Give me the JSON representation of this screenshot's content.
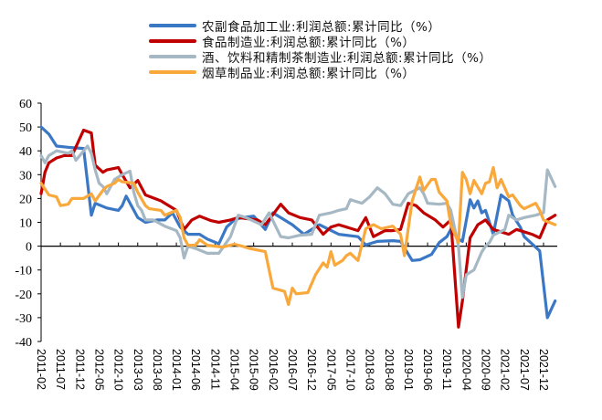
{
  "chart_data": {
    "type": "line",
    "title": "",
    "xlabel": "",
    "ylabel": "",
    "ylim": [
      -40,
      60
    ],
    "yticks": [
      "60",
      "50",
      "40",
      "30",
      "20",
      "10",
      "0",
      "-10",
      "-20",
      "-30",
      "-40"
    ],
    "xticks": [
      "2011-02",
      "2011-07",
      "2011-12",
      "2012-05",
      "2012-10",
      "2013-03",
      "2013-08",
      "2014-01",
      "2014-06",
      "2014-11",
      "2015-04",
      "2015-09",
      "2016-02",
      "2016-07",
      "2016-12",
      "2017-05",
      "2017-10",
      "2018-03",
      "2018-08",
      "2019-01",
      "2019-06",
      "2019-11",
      "2020-04",
      "2020-09",
      "2021-02",
      "2021-07",
      "2021-12"
    ],
    "grid": false,
    "legend_position": "top",
    "series": [
      {
        "name": "农副食品加工业:利润总额:累计同比（%）",
        "color": "#3A78C6",
        "points": [
          [
            "2011-02",
            50
          ],
          [
            "2011-04",
            47
          ],
          [
            "2011-06",
            42
          ],
          [
            "2011-09",
            41.5
          ],
          [
            "2012-01",
            41
          ],
          [
            "2012-03",
            13
          ],
          [
            "2012-04",
            18
          ],
          [
            "2012-07",
            16
          ],
          [
            "2012-10",
            15
          ],
          [
            "2012-11",
            17
          ],
          [
            "2012-12",
            21
          ],
          [
            "2013-03",
            12
          ],
          [
            "2013-05",
            10
          ],
          [
            "2013-08",
            11
          ],
          [
            "2013-10",
            11
          ],
          [
            "2013-12",
            14
          ],
          [
            "2014-02",
            8
          ],
          [
            "2014-04",
            5
          ],
          [
            "2014-07",
            5
          ],
          [
            "2014-09",
            3
          ],
          [
            "2014-12",
            1
          ],
          [
            "2015-02",
            8
          ],
          [
            "2015-04",
            11
          ],
          [
            "2015-06",
            12
          ],
          [
            "2015-09",
            12.6
          ],
          [
            "2015-12",
            7
          ],
          [
            "2016-02",
            14
          ],
          [
            "2016-07",
            9
          ],
          [
            "2016-10",
            5
          ],
          [
            "2017-02",
            9
          ],
          [
            "2017-07",
            5
          ],
          [
            "2017-12",
            4
          ],
          [
            "2018-02",
            0.5
          ],
          [
            "2018-05",
            2
          ],
          [
            "2018-09",
            2.3
          ],
          [
            "2018-11",
            2
          ],
          [
            "2019-02",
            -6
          ],
          [
            "2019-04",
            -5.7
          ],
          [
            "2019-07",
            -3.5
          ],
          [
            "2019-09",
            1.5
          ],
          [
            "2019-11",
            4
          ],
          [
            "2019-12",
            7
          ],
          [
            "2020-02",
            3
          ],
          [
            "2020-03",
            2
          ],
          [
            "2020-05",
            19.5
          ],
          [
            "2020-06",
            16
          ],
          [
            "2020-07",
            19
          ],
          [
            "2020-08",
            14
          ],
          [
            "2020-09",
            15
          ],
          [
            "2020-11",
            5
          ],
          [
            "2021-01",
            21.5
          ],
          [
            "2021-03",
            19
          ],
          [
            "2021-04",
            13
          ],
          [
            "2021-06",
            8
          ],
          [
            "2021-07",
            4
          ],
          [
            "2021-11",
            -2
          ],
          [
            "2022-01",
            -30
          ],
          [
            "2022-03",
            -23
          ]
        ]
      },
      {
        "name": "食品制造业:利润总额:累计同比（%）",
        "color": "#C00000",
        "points": [
          [
            "2011-02",
            22
          ],
          [
            "2011-03",
            31
          ],
          [
            "2011-04",
            35
          ],
          [
            "2011-06",
            37
          ],
          [
            "2011-08",
            38
          ],
          [
            "2011-10",
            38
          ],
          [
            "2012-01",
            48.7
          ],
          [
            "2012-03",
            47.5
          ],
          [
            "2012-04",
            34
          ],
          [
            "2012-06",
            31
          ],
          [
            "2012-07",
            32
          ],
          [
            "2012-10",
            33
          ],
          [
            "2012-11",
            30
          ],
          [
            "2013-01",
            24.5
          ],
          [
            "2013-03",
            27.6
          ],
          [
            "2013-05",
            21.5
          ],
          [
            "2013-09",
            19
          ],
          [
            "2014-01",
            15
          ],
          [
            "2014-03",
            7
          ],
          [
            "2014-05",
            11
          ],
          [
            "2014-07",
            12.6
          ],
          [
            "2014-10",
            10.7
          ],
          [
            "2014-12",
            10
          ],
          [
            "2015-03",
            11
          ],
          [
            "2015-05",
            12
          ],
          [
            "2015-10",
            11
          ],
          [
            "2015-12",
            9
          ],
          [
            "2016-04",
            17.6
          ],
          [
            "2016-06",
            14
          ],
          [
            "2016-09",
            12
          ],
          [
            "2016-12",
            11
          ],
          [
            "2017-02",
            7
          ],
          [
            "2017-03",
            5
          ],
          [
            "2017-05",
            8
          ],
          [
            "2017-07",
            9
          ],
          [
            "2017-09",
            8
          ],
          [
            "2017-12",
            6.5
          ],
          [
            "2018-02",
            12
          ],
          [
            "2018-04",
            4
          ],
          [
            "2018-07",
            6.5
          ],
          [
            "2018-09",
            6.5
          ],
          [
            "2018-11",
            7
          ],
          [
            "2019-01",
            18
          ],
          [
            "2019-03",
            17
          ],
          [
            "2019-05",
            14
          ],
          [
            "2019-08",
            11
          ],
          [
            "2019-10",
            8
          ],
          [
            "2019-12",
            11
          ],
          [
            "2020-02",
            -34
          ],
          [
            "2020-03",
            -23
          ],
          [
            "2020-05",
            3.5
          ],
          [
            "2020-07",
            9
          ],
          [
            "2020-09",
            11
          ],
          [
            "2020-11",
            7
          ],
          [
            "2021-03",
            5
          ],
          [
            "2021-05",
            7
          ],
          [
            "2021-09",
            5
          ],
          [
            "2021-11",
            3.5
          ],
          [
            "2022-01",
            11
          ],
          [
            "2022-03",
            13
          ]
        ]
      },
      {
        "name": "酒、饮料和精制茶制造业:利润总额:累计同比（%）",
        "color": "#A5B8C4",
        "points": [
          [
            "2011-02",
            38
          ],
          [
            "2011-03",
            35
          ],
          [
            "2011-04",
            38
          ],
          [
            "2011-06",
            40
          ],
          [
            "2011-09",
            39
          ],
          [
            "2011-10",
            40
          ],
          [
            "2011-11",
            36
          ],
          [
            "2012-01",
            40
          ],
          [
            "2012-02",
            42
          ],
          [
            "2012-03",
            39
          ],
          [
            "2012-04",
            32
          ],
          [
            "2012-05",
            26.4
          ],
          [
            "2012-06",
            25
          ],
          [
            "2012-07",
            22
          ],
          [
            "2012-09",
            28
          ],
          [
            "2012-11",
            30
          ],
          [
            "2013-01",
            31.5
          ],
          [
            "2013-02",
            22.6
          ],
          [
            "2013-03",
            17
          ],
          [
            "2013-04",
            15
          ],
          [
            "2013-05",
            11
          ],
          [
            "2013-07",
            11
          ],
          [
            "2013-10",
            8.4
          ],
          [
            "2014-01",
            6.5
          ],
          [
            "2014-02",
            3.5
          ],
          [
            "2014-03",
            -5
          ],
          [
            "2014-04",
            0
          ],
          [
            "2014-06",
            -1
          ],
          [
            "2014-09",
            -3
          ],
          [
            "2014-12",
            -3
          ],
          [
            "2015-03",
            4
          ],
          [
            "2015-05",
            13
          ],
          [
            "2015-07",
            12
          ],
          [
            "2015-11",
            9
          ],
          [
            "2016-01",
            14
          ],
          [
            "2016-04",
            4
          ],
          [
            "2016-06",
            3.5
          ],
          [
            "2016-09",
            4.6
          ],
          [
            "2016-12",
            5
          ],
          [
            "2017-02",
            13
          ],
          [
            "2017-05",
            14
          ],
          [
            "2017-07",
            15
          ],
          [
            "2017-09",
            15.7
          ],
          [
            "2017-10",
            19.5
          ],
          [
            "2018-01",
            18
          ],
          [
            "2018-03",
            20.7
          ],
          [
            "2018-05",
            24.5
          ],
          [
            "2018-07",
            22
          ],
          [
            "2018-09",
            17.6
          ],
          [
            "2018-11",
            17
          ],
          [
            "2019-01",
            22
          ],
          [
            "2019-04",
            24.5
          ],
          [
            "2019-05",
            22
          ],
          [
            "2019-06",
            18
          ],
          [
            "2019-09",
            17.6
          ],
          [
            "2019-11",
            18
          ],
          [
            "2019-12",
            15
          ],
          [
            "2020-02",
            0
          ],
          [
            "2020-03",
            -21.5
          ],
          [
            "2020-04",
            -12
          ],
          [
            "2020-06",
            -10
          ],
          [
            "2020-08",
            -2.5
          ],
          [
            "2020-09",
            0
          ],
          [
            "2020-10",
            1.5
          ],
          [
            "2020-11",
            4.6
          ],
          [
            "2021-02",
            7
          ],
          [
            "2021-03",
            13
          ],
          [
            "2021-05",
            11
          ],
          [
            "2021-07",
            12
          ],
          [
            "2021-10",
            13
          ],
          [
            "2021-12",
            14
          ],
          [
            "2022-01",
            32
          ],
          [
            "2022-03",
            25
          ]
        ]
      },
      {
        "name": "烟草制品业:利润总额:累计同比（%）",
        "color": "#F9A83C",
        "points": [
          [
            "2011-02",
            26.4
          ],
          [
            "2011-04",
            21.5
          ],
          [
            "2011-06",
            20.7
          ],
          [
            "2011-07",
            17
          ],
          [
            "2011-09",
            17.6
          ],
          [
            "2011-10",
            20
          ],
          [
            "2012-01",
            20
          ],
          [
            "2012-03",
            22
          ],
          [
            "2012-04",
            19
          ],
          [
            "2012-06",
            23.4
          ],
          [
            "2012-07",
            25
          ],
          [
            "2012-09",
            26.4
          ],
          [
            "2012-10",
            28
          ],
          [
            "2012-11",
            27
          ],
          [
            "2013-02",
            26.4
          ],
          [
            "2013-03",
            22.6
          ],
          [
            "2013-05",
            17
          ],
          [
            "2013-06",
            15.7
          ],
          [
            "2013-09",
            15
          ],
          [
            "2013-10",
            13
          ],
          [
            "2014-01",
            15
          ],
          [
            "2014-02",
            12
          ],
          [
            "2014-03",
            3.5
          ],
          [
            "2014-04",
            0.4
          ],
          [
            "2014-06",
            0.4
          ],
          [
            "2014-07",
            2.7
          ],
          [
            "2014-09",
            0.4
          ],
          [
            "2015-01",
            -0.4
          ],
          [
            "2015-04",
            0.8
          ],
          [
            "2015-06",
            0
          ],
          [
            "2015-08",
            -1
          ],
          [
            "2015-12",
            -2.3
          ],
          [
            "2016-02",
            -17.6
          ],
          [
            "2016-05",
            -19
          ],
          [
            "2016-06",
            -24.5
          ],
          [
            "2016-07",
            -17.6
          ],
          [
            "2016-08",
            -20
          ],
          [
            "2016-11",
            -19.5
          ],
          [
            "2017-01",
            -12
          ],
          [
            "2017-03",
            -7
          ],
          [
            "2017-04",
            -8.8
          ],
          [
            "2017-05",
            -2.3
          ],
          [
            "2017-06",
            -8
          ],
          [
            "2017-08",
            -6
          ],
          [
            "2017-09",
            -4
          ],
          [
            "2017-10",
            -3
          ],
          [
            "2017-12",
            -6
          ],
          [
            "2018-02",
            7.3
          ],
          [
            "2018-04",
            9
          ],
          [
            "2018-06",
            7.3
          ],
          [
            "2018-09",
            8.4
          ],
          [
            "2018-11",
            5
          ],
          [
            "2018-12",
            -4
          ],
          [
            "2019-02",
            19
          ],
          [
            "2019-04",
            29
          ],
          [
            "2019-05",
            23.4
          ],
          [
            "2019-07",
            28
          ],
          [
            "2019-08",
            28
          ],
          [
            "2019-09",
            22.6
          ],
          [
            "2019-11",
            19
          ],
          [
            "2019-12",
            9
          ],
          [
            "2020-02",
            1.5
          ],
          [
            "2020-03",
            31
          ],
          [
            "2020-04",
            28
          ],
          [
            "2020-05",
            22
          ],
          [
            "2020-06",
            27.6
          ],
          [
            "2020-08",
            22
          ],
          [
            "2020-09",
            26.4
          ],
          [
            "2020-10",
            27
          ],
          [
            "2020-11",
            33
          ],
          [
            "2020-12",
            24.5
          ],
          [
            "2021-01",
            28
          ],
          [
            "2021-03",
            20.7
          ],
          [
            "2021-04",
            21.5
          ],
          [
            "2021-06",
            17
          ],
          [
            "2021-07",
            15.7
          ],
          [
            "2021-10",
            18
          ],
          [
            "2021-11",
            15
          ],
          [
            "2021-12",
            11
          ],
          [
            "2022-03",
            9
          ]
        ]
      }
    ]
  }
}
